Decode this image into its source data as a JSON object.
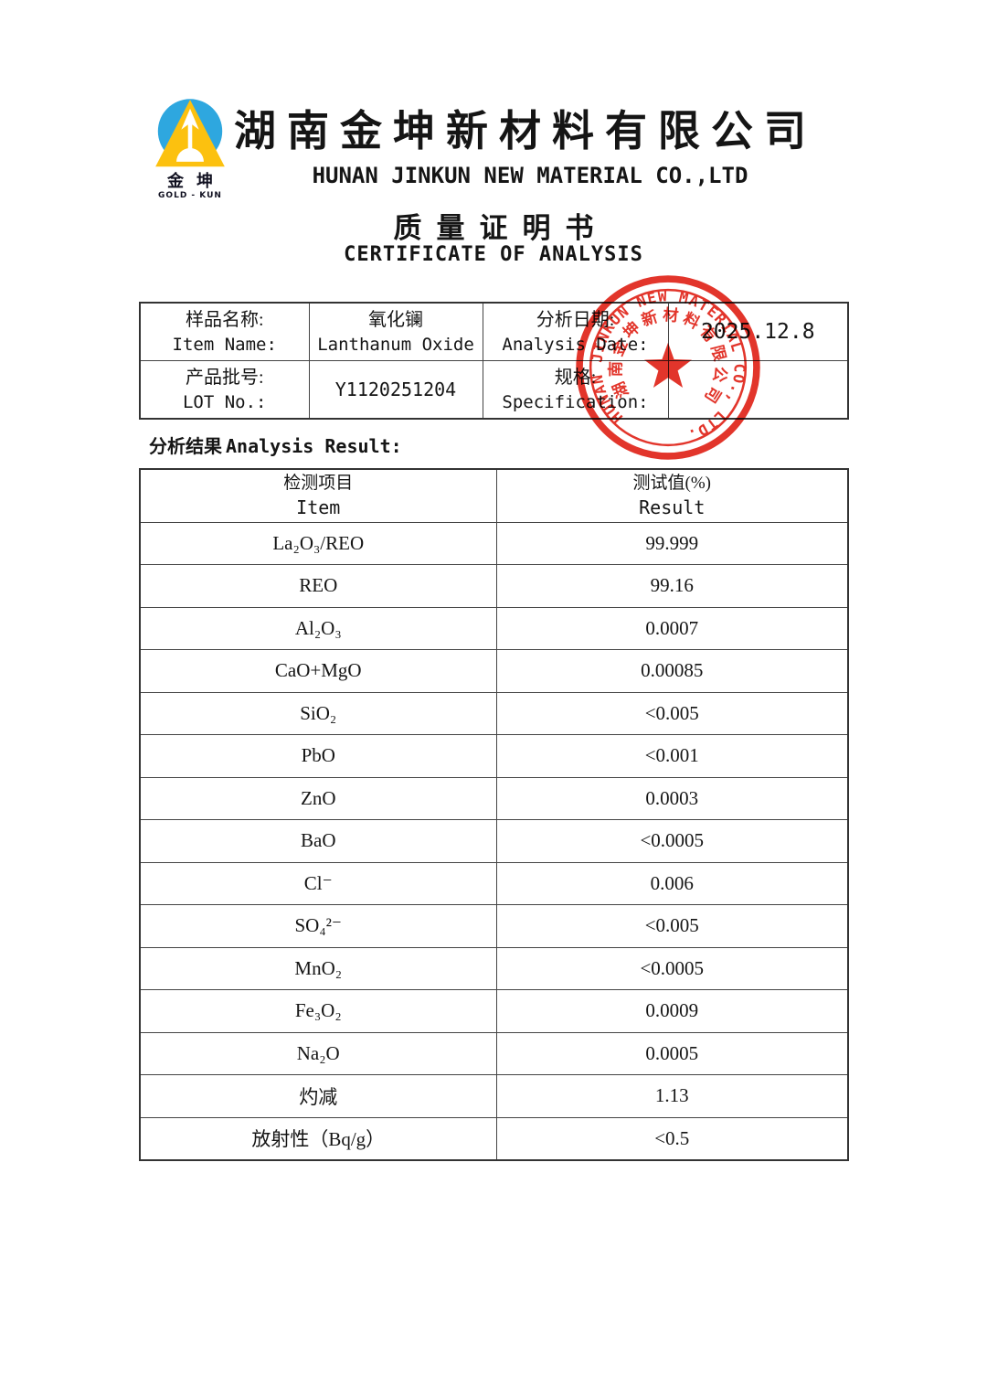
{
  "logo": {
    "name_cn": "金坤",
    "name_en": "GOLD - KUN",
    "emblem_icon": "arrow-in-triangle-circle",
    "blue": "#2ea7df",
    "yellow": "#fcc10f"
  },
  "header": {
    "company_cn": "湖南金坤新材料有限公司",
    "company_en": "HUNAN JINKUN NEW MATERIAL CO.,LTD",
    "title_cn": "质量证明书",
    "title_en": "CERTIFICATE OF ANALYSIS"
  },
  "info_table": {
    "rows": [
      {
        "label1_cn": "样品名称:",
        "label1_en": "Item Name:",
        "value1_cn": "氧化镧",
        "value1_en": "Lanthanum Oxide",
        "label2_cn": "分析日期:",
        "label2_en": "Analysis Date:",
        "value2": "2025.12.8"
      },
      {
        "label1_cn": "产品批号:",
        "label1_en": "LOT No.:",
        "value1": "Y1120251204",
        "label2_cn": "规格:",
        "label2_en": "Specification:",
        "value2": ""
      }
    ]
  },
  "section": {
    "heading_cn": "分析结果",
    "heading_en": "Analysis Result:"
  },
  "result_table": {
    "header": {
      "item_cn": "检测项目",
      "item_en": "Item",
      "result_cn": "测试值(%)",
      "result_en": "Result"
    },
    "rows": [
      {
        "item": "La₂O₃/REO",
        "result": "99.999"
      },
      {
        "item": "REO",
        "result": "99.16"
      },
      {
        "item": "Al₂O₃",
        "result": "0.0007"
      },
      {
        "item": "CaO+MgO",
        "result": "0.00085"
      },
      {
        "item": "SiO₂",
        "result": "<0.005"
      },
      {
        "item": "PbO",
        "result": "<0.001"
      },
      {
        "item": "ZnO",
        "result": "0.0003"
      },
      {
        "item": "BaO",
        "result": "<0.0005"
      },
      {
        "item": "Cl⁻",
        "result": "0.006"
      },
      {
        "item": "SO₄²⁻",
        "result": "<0.005"
      },
      {
        "item": "MnO₂",
        "result": "<0.0005"
      },
      {
        "item": "Fe₃O₂",
        "result": "0.0009"
      },
      {
        "item": "Na₂O",
        "result": "0.0005"
      },
      {
        "item": "灼减",
        "result": "1.13"
      },
      {
        "item": "放射性（Bq/g）",
        "result": "<0.5"
      }
    ]
  },
  "stamp": {
    "text_en": "HUNAN JINKUN NEW MATERIAL CO., LTD.",
    "text_cn": "湖南金坤新材料有限公司",
    "color": "#e02318"
  }
}
